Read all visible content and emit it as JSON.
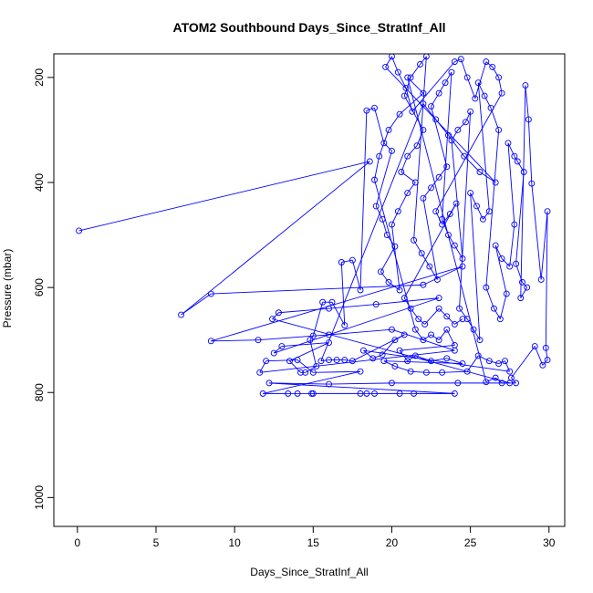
{
  "chart_data": {
    "type": "scatter",
    "title": "ATOM2 Southbound Days_Since_StratInf_All",
    "xlabel": "Days_Since_StratInf_All",
    "ylabel": "Pressure (mbar)",
    "xlim": [
      -1.5,
      31.0
    ],
    "ylim": [
      1055,
      155
    ],
    "y_reversed": true,
    "x_ticks": [
      0,
      5,
      10,
      15,
      20,
      25,
      30
    ],
    "y_ticks": [
      200,
      400,
      600,
      800,
      1000
    ],
    "grid": false,
    "legend": "none",
    "marker": "open-circle",
    "color": "#0000ff",
    "connected": true,
    "series": [
      {
        "values": [
          [
            0.1,
            492
          ],
          [
            18.6,
            360
          ],
          [
            6.6,
            652
          ],
          [
            8.5,
            612
          ],
          [
            22.0,
            595
          ],
          [
            24.5,
            560
          ],
          [
            8.5,
            702
          ],
          [
            11.5,
            700
          ],
          [
            16.0,
            690
          ],
          [
            20.0,
            680
          ],
          [
            24.0,
            720
          ],
          [
            11.6,
            762
          ],
          [
            12.0,
            740
          ],
          [
            14.0,
            738
          ],
          [
            15.0,
            762
          ],
          [
            18.0,
            760
          ],
          [
            11.8,
            802
          ],
          [
            13.4,
            802
          ],
          [
            14.0,
            802
          ],
          [
            14.9,
            802
          ],
          [
            15.0,
            802
          ],
          [
            18.0,
            802
          ],
          [
            18.4,
            802
          ],
          [
            18.9,
            802
          ],
          [
            20.5,
            802
          ],
          [
            21.4,
            802
          ],
          [
            24.0,
            802
          ],
          [
            12.2,
            782
          ],
          [
            16.0,
            784
          ],
          [
            20.0,
            782
          ],
          [
            24.2,
            782
          ],
          [
            27.5,
            782
          ],
          [
            12.4,
            660
          ],
          [
            12.8,
            648
          ],
          [
            16.0,
            640
          ],
          [
            19.0,
            632
          ],
          [
            23.0,
            620
          ],
          [
            12.5,
            725
          ],
          [
            13.0,
            712
          ],
          [
            16.0,
            705
          ],
          [
            13.5,
            740
          ],
          [
            14.2,
            762
          ],
          [
            14.5,
            762
          ],
          [
            15.2,
            750
          ],
          [
            14.8,
            700
          ],
          [
            15.0,
            692
          ],
          [
            15.6,
            628
          ],
          [
            16.2,
            628
          ],
          [
            17.0,
            672
          ],
          [
            16.8,
            552
          ],
          [
            17.5,
            548
          ],
          [
            18.0,
            605
          ],
          [
            18.4,
            263
          ],
          [
            18.9,
            258
          ],
          [
            19.5,
            325
          ],
          [
            20.0,
            340
          ],
          [
            19.0,
            445
          ],
          [
            19.4,
            470
          ],
          [
            19.7,
            500
          ],
          [
            20.2,
            522
          ],
          [
            19.3,
            570
          ],
          [
            19.8,
            590
          ],
          [
            20.5,
            605
          ],
          [
            20.0,
            480
          ],
          [
            20.4,
            455
          ],
          [
            21.0,
            420
          ],
          [
            21.5,
            400
          ],
          [
            20.6,
            380
          ],
          [
            21.0,
            350
          ],
          [
            21.6,
            330
          ],
          [
            22.0,
            300
          ],
          [
            20.8,
            235
          ],
          [
            21.2,
            200
          ],
          [
            21.8,
            175
          ],
          [
            22.2,
            160
          ],
          [
            21.4,
            510
          ],
          [
            21.9,
            535
          ],
          [
            22.4,
            560
          ],
          [
            22.9,
            585
          ],
          [
            22.0,
            430
          ],
          [
            22.5,
            410
          ],
          [
            23.0,
            390
          ],
          [
            23.5,
            370
          ],
          [
            22.5,
            255
          ],
          [
            23.0,
            230
          ],
          [
            23.4,
            210
          ],
          [
            23.8,
            190
          ],
          [
            23.2,
            470
          ],
          [
            23.6,
            500
          ],
          [
            24.0,
            520
          ],
          [
            24.5,
            545
          ],
          [
            23.8,
            320
          ],
          [
            24.2,
            300
          ],
          [
            24.7,
            285
          ],
          [
            25.0,
            265
          ],
          [
            24.3,
            640
          ],
          [
            24.8,
            660
          ],
          [
            25.2,
            680
          ],
          [
            25.6,
            700
          ],
          [
            25.0,
            420
          ],
          [
            25.4,
            445
          ],
          [
            25.8,
            470
          ],
          [
            26.2,
            455
          ],
          [
            25.5,
            210
          ],
          [
            25.9,
            235
          ],
          [
            26.3,
            258
          ],
          [
            26.8,
            300
          ],
          [
            26.0,
            600
          ],
          [
            26.5,
            640
          ],
          [
            26.9,
            660
          ],
          [
            27.3,
            612
          ],
          [
            26.6,
            520
          ],
          [
            27.0,
            545
          ],
          [
            27.5,
            560
          ],
          [
            27.8,
            480
          ],
          [
            27.4,
            325
          ],
          [
            27.8,
            350
          ],
          [
            28.0,
            360
          ],
          [
            28.4,
            380
          ],
          [
            27.9,
            555
          ],
          [
            28.3,
            590
          ],
          [
            28.6,
            600
          ],
          [
            28.2,
            620
          ],
          [
            28.5,
            215
          ],
          [
            28.7,
            280
          ],
          [
            28.9,
            402
          ],
          [
            29.5,
            585
          ],
          [
            29.9,
            455
          ],
          [
            29.8,
            715
          ],
          [
            29.9,
            738
          ],
          [
            29.6,
            748
          ],
          [
            29.1,
            712
          ],
          [
            27.6,
            772
          ],
          [
            27.9,
            782
          ],
          [
            27.0,
            782
          ],
          [
            26.6,
            772
          ],
          [
            26.0,
            780
          ],
          [
            21.0,
            200
          ],
          [
            22.0,
            230
          ],
          [
            20.5,
            270
          ],
          [
            19.8,
            300
          ],
          [
            19.2,
            350
          ],
          [
            18.9,
            395
          ],
          [
            21.5,
            680
          ],
          [
            22.0,
            700
          ],
          [
            22.5,
            690
          ],
          [
            23.0,
            700
          ],
          [
            23.5,
            680
          ],
          [
            24.0,
            710
          ],
          [
            20.5,
            720
          ],
          [
            21.0,
            740
          ],
          [
            21.5,
            730
          ],
          [
            22.5,
            740
          ],
          [
            23.5,
            735
          ],
          [
            24.5,
            745
          ],
          [
            19.5,
            740
          ],
          [
            20.2,
            750
          ],
          [
            21.2,
            760
          ],
          [
            22.2,
            762
          ],
          [
            23.2,
            762
          ],
          [
            24.8,
            760
          ],
          [
            25.5,
            730
          ],
          [
            26.2,
            740
          ],
          [
            26.8,
            745
          ],
          [
            27.2,
            740
          ],
          [
            27.5,
            760
          ],
          [
            18.2,
            720
          ],
          [
            18.8,
            735
          ],
          [
            19.4,
            728
          ],
          [
            20.2,
            700
          ],
          [
            20.8,
            690
          ],
          [
            17.5,
            740
          ],
          [
            17.0,
            738
          ],
          [
            16.5,
            738
          ],
          [
            16.0,
            738
          ],
          [
            15.5,
            740
          ],
          [
            22.0,
            250
          ],
          [
            22.8,
            280
          ],
          [
            23.6,
            310
          ],
          [
            24.6,
            350
          ],
          [
            25.6,
            380
          ],
          [
            26.6,
            400
          ],
          [
            19.6,
            180
          ],
          [
            20.0,
            160
          ],
          [
            20.4,
            190
          ],
          [
            20.9,
            220
          ],
          [
            21.3,
            265
          ],
          [
            24.0,
            170
          ],
          [
            24.4,
            165
          ],
          [
            24.8,
            200
          ],
          [
            25.3,
            240
          ],
          [
            26.0,
            170
          ],
          [
            26.4,
            180
          ],
          [
            26.8,
            200
          ],
          [
            27.0,
            230
          ],
          [
            22.8,
            455
          ],
          [
            23.2,
            480
          ],
          [
            23.7,
            460
          ],
          [
            24.1,
            440
          ],
          [
            20.8,
            620
          ],
          [
            21.2,
            640
          ],
          [
            21.7,
            660
          ],
          [
            22.1,
            670
          ],
          [
            23.0,
            640
          ],
          [
            23.5,
            655
          ],
          [
            24.0,
            670
          ],
          [
            24.5,
            660
          ]
        ]
      }
    ]
  }
}
